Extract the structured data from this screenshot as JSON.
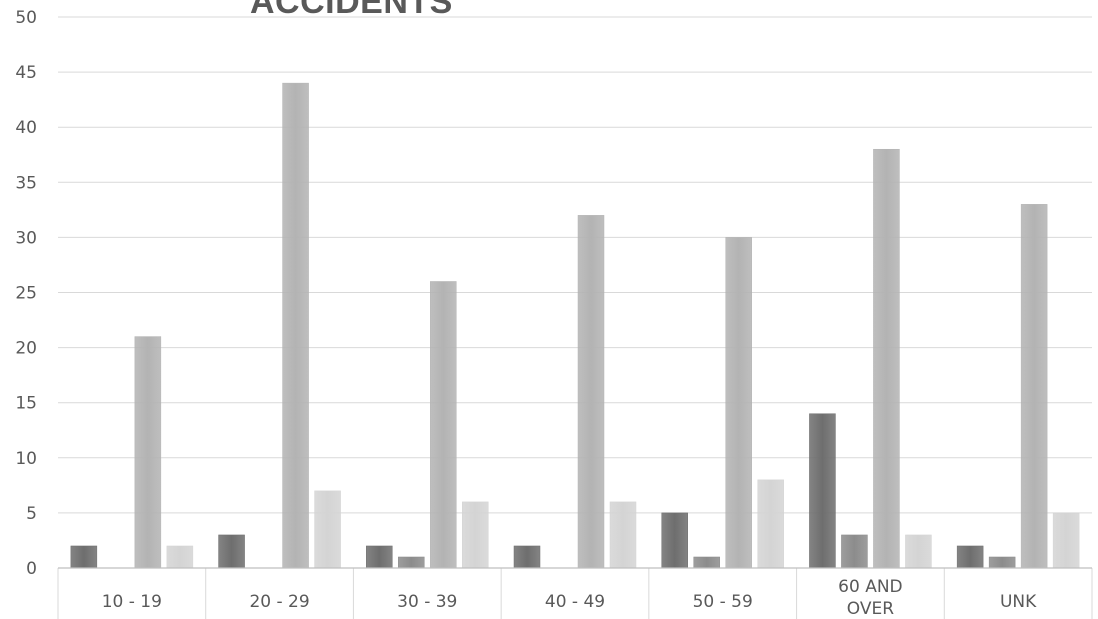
{
  "chart_data": {
    "type": "bar",
    "title": "ACCIDENTS",
    "categories": [
      "10 - 19",
      "20 - 29",
      "30 - 39",
      "40 - 49",
      "50 - 59",
      "60 AND OVER",
      "UNK"
    ],
    "series": [
      {
        "values": [
          2,
          3,
          2,
          2,
          5,
          14,
          2
        ],
        "color": "#6e6e6e"
      },
      {
        "values": [
          0,
          0,
          1,
          0,
          1,
          3,
          1
        ],
        "color": "#8c8c8c"
      },
      {
        "values": [
          21,
          44,
          26,
          32,
          30,
          38,
          33
        ],
        "color": "#b3b3b3"
      },
      {
        "values": [
          2,
          7,
          6,
          6,
          8,
          3,
          5
        ],
        "color": "#d4d4d4"
      }
    ],
    "ylim": [
      0,
      50
    ],
    "yticks": [
      0,
      5,
      10,
      15,
      20,
      25,
      30,
      35,
      40,
      45,
      50
    ],
    "grid": true,
    "legend": "none"
  }
}
